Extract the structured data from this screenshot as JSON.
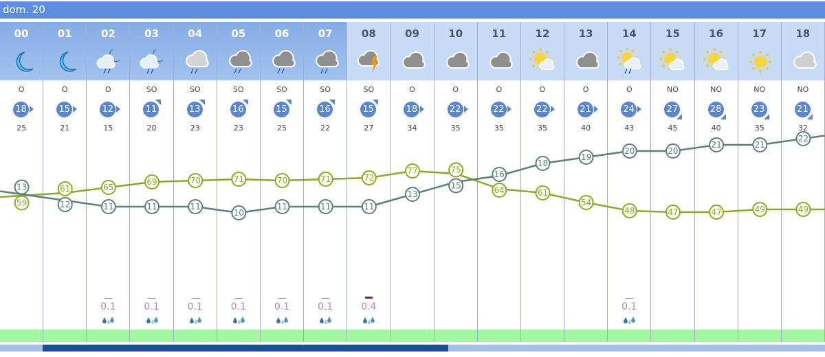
{
  "day_label": "dom. 20",
  "hours": [
    {
      "h": "00",
      "icon": "moon",
      "dir": "O",
      "wind": "18",
      "gust": "25",
      "precip": "",
      "night": true
    },
    {
      "h": "01",
      "icon": "moon",
      "dir": "O",
      "wind": "15",
      "gust": "21",
      "precip": "",
      "night": true
    },
    {
      "h": "02",
      "icon": "moon-cloud-rain",
      "dir": "O",
      "wind": "12",
      "gust": "15",
      "precip": "0.1",
      "night": true
    },
    {
      "h": "03",
      "icon": "moon-cloud-rain",
      "dir": "SO",
      "wind": "11",
      "gust": "20",
      "precip": "0.1",
      "night": true
    },
    {
      "h": "04",
      "icon": "cloud-rain-light",
      "dir": "SO",
      "wind": "13",
      "gust": "23",
      "precip": "0.1",
      "night": true
    },
    {
      "h": "05",
      "icon": "cloud-rain",
      "dir": "SO",
      "wind": "16",
      "gust": "23",
      "precip": "0.1",
      "night": true
    },
    {
      "h": "06",
      "icon": "cloud-rain",
      "dir": "SO",
      "wind": "15",
      "gust": "25",
      "precip": "0.1",
      "night": true
    },
    {
      "h": "07",
      "icon": "cloud-rain",
      "dir": "SO",
      "wind": "16",
      "gust": "22",
      "precip": "0.1",
      "night": true
    },
    {
      "h": "08",
      "icon": "cloud-storm",
      "dir": "SO",
      "wind": "15",
      "gust": "27",
      "precip": "0.4",
      "night": false
    },
    {
      "h": "09",
      "icon": "cloud",
      "dir": "O",
      "wind": "18",
      "gust": "34",
      "precip": "",
      "night": false
    },
    {
      "h": "10",
      "icon": "cloud",
      "dir": "O",
      "wind": "22",
      "gust": "35",
      "precip": "",
      "night": false
    },
    {
      "h": "11",
      "icon": "cloud",
      "dir": "O",
      "wind": "22",
      "gust": "35",
      "precip": "",
      "night": false
    },
    {
      "h": "12",
      "icon": "sun-cloud",
      "dir": "O",
      "wind": "22",
      "gust": "35",
      "precip": "",
      "night": false
    },
    {
      "h": "13",
      "icon": "cloud",
      "dir": "O",
      "wind": "21",
      "gust": "40",
      "precip": "",
      "night": false
    },
    {
      "h": "14",
      "icon": "sun-cloud-rain",
      "dir": "O",
      "wind": "24",
      "gust": "43",
      "precip": "0.1",
      "night": false
    },
    {
      "h": "15",
      "icon": "sun-cloud",
      "dir": "NO",
      "wind": "27",
      "gust": "45",
      "precip": "",
      "night": false
    },
    {
      "h": "16",
      "icon": "sun-cloud",
      "dir": "NO",
      "wind": "28",
      "gust": "40",
      "precip": "",
      "night": false
    },
    {
      "h": "17",
      "icon": "sun",
      "dir": "NO",
      "wind": "23",
      "gust": "35",
      "precip": "",
      "night": false
    },
    {
      "h": "18",
      "icon": "cloud-light",
      "dir": "NO",
      "wind": "21",
      "gust": "32",
      "precip": "",
      "night": false
    }
  ],
  "temperature": [
    13,
    12,
    11,
    11,
    11,
    10,
    11,
    11,
    11,
    13,
    15,
    16,
    18,
    19,
    20,
    20,
    21,
    21,
    22
  ],
  "humidity": [
    59,
    61,
    65,
    69,
    70,
    71,
    70,
    71,
    72,
    77,
    75,
    64,
    61,
    54,
    48,
    47,
    47,
    49,
    49
  ],
  "colors": {
    "temperature": "#5d7f7b",
    "humidity": "#8aaa25",
    "header": "#5b8ede",
    "wind": "#5a86cf",
    "scroll_thumb": "#1d4f96"
  }
}
